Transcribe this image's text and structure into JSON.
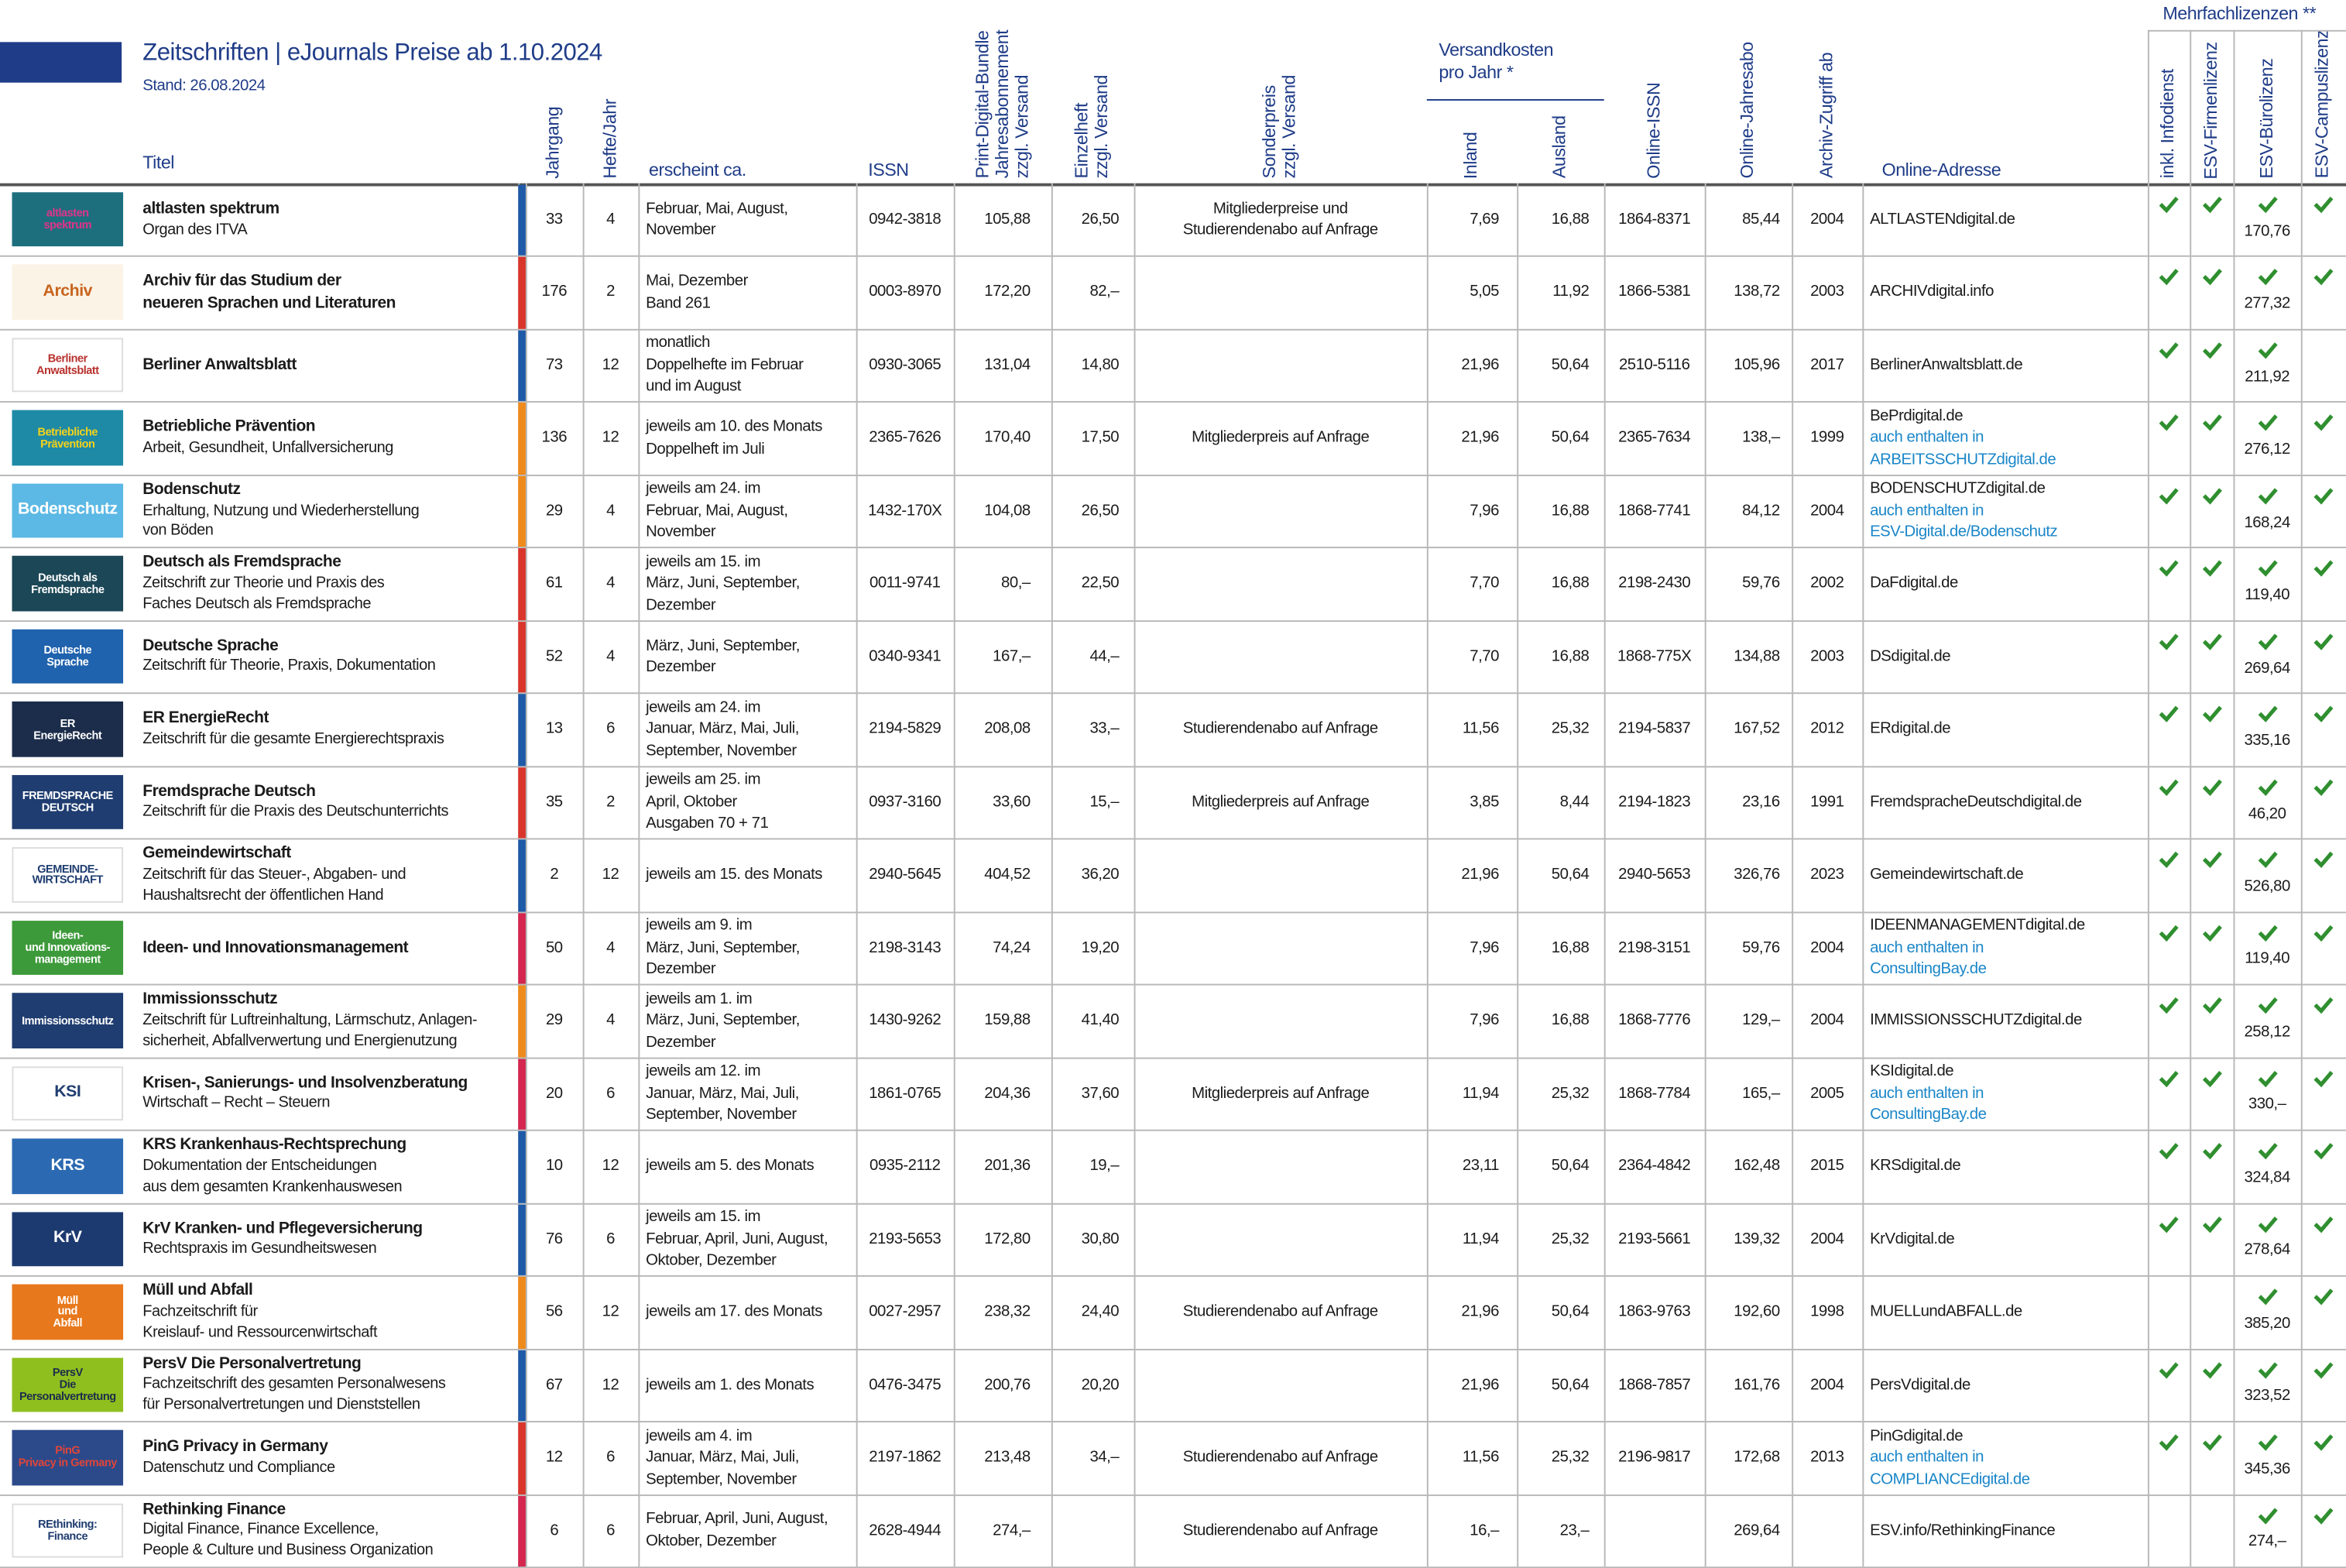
{
  "header": {
    "title": "Zeitschriften | eJournals Preise ab 1.10.2024",
    "stand": "Stand: 26.08.2024"
  },
  "columns": {
    "titel": "Titel",
    "jahrgang": "Jahrgang",
    "hefte": "Hefte/Jahr",
    "erscheint": "erscheint ca.",
    "issn": "ISSN",
    "print": "Print-Digital-Bundle\nJahresabonnement\nzzgl. Versand",
    "einzel": "Einzelheft\nzzgl. Versand",
    "sonder": "Sonderpreis\nzzgl. Versand",
    "versand": "Versandkosten\npro Jahr *",
    "inland": "Inland",
    "ausland": "Ausland",
    "oissn": "Online-ISSN",
    "oabo": "Online-Jahresabo",
    "archiv": "Archiv-Zugriff ab",
    "url": "Online-Adresse",
    "mehrfach": "Mehrfachlizenzen **",
    "infodienst": "inkl. Infodienst",
    "firmen": "ESV-Firmenlizenz",
    "buero": "ESV-Bürolizenz",
    "campus": "ESV-Campuslizenz"
  },
  "rows": [
    {
      "logo": "altlasten\nspektrum",
      "logo_bg": "#1d6f7e",
      "logo_fg": "#e0338a",
      "bar": "#1f5aa8",
      "title": "altlasten spektrum",
      "subtitle": "Organ des ITVA",
      "jahrgang": "33",
      "hefte": "4",
      "erscheint": "Februar, Mai, August,\nNovember",
      "issn": "0942-3818",
      "print": "105,88",
      "einzel": "26,50",
      "sonder": "Mitgliederpreise und\nStudierendenabo auf Anfrage",
      "inland": "7,69",
      "ausland": "16,88",
      "oissn": "1864-8371",
      "oabo": "85,44",
      "archiv": "2004",
      "url": "ALTLASTENdigital.de",
      "infodienst": true,
      "firmen": true,
      "buero": "170,76",
      "campus": true
    },
    {
      "logo": "Archiv",
      "logo_bg": "#fbf3e6",
      "logo_fg": "#c8641e",
      "bar": "#d9352b",
      "title": "Archiv für das Studium der\nneueren Sprachen und Literaturen",
      "jahrgang": "176",
      "hefte": "2",
      "erscheint": "Mai, Dezember\nBand 261",
      "issn": "0003-8970",
      "print": "172,20",
      "einzel": "82,–",
      "inland": "5,05",
      "ausland": "11,92",
      "oissn": "1866-5381",
      "oabo": "138,72",
      "archiv": "2003",
      "url": "ARCHIVdigital.info",
      "infodienst": true,
      "firmen": true,
      "buero": "277,32",
      "campus": true
    },
    {
      "logo": "Berliner\nAnwaltsblatt",
      "logo_bg": "#ffffff",
      "logo_fg": "#b8322e",
      "bar": "#1f5aa8",
      "title": "Berliner Anwaltsblatt",
      "jahrgang": "73",
      "hefte": "12",
      "erscheint": "monatlich\nDoppelhefte im Februar\nund im August",
      "issn": "0930-3065",
      "print": "131,04",
      "einzel": "14,80",
      "inland": "21,96",
      "ausland": "50,64",
      "oissn": "2510-5116",
      "oabo": "105,96",
      "archiv": "2017",
      "url": "BerlinerAnwaltsblatt.de",
      "infodienst": true,
      "firmen": true,
      "buero": "211,92",
      "campus": false
    },
    {
      "logo": "Betriebliche\nPrävention",
      "logo_bg": "#1e8aa6",
      "logo_fg": "#f3d21b",
      "bar": "#ef8a1c",
      "title": "Betriebliche Prävention",
      "subtitle": "Arbeit, Gesundheit, Unfallversicherung",
      "jahrgang": "136",
      "hefte": "12",
      "erscheint": "jeweils am 10. des Monats\nDoppelheft im Juli",
      "issn": "2365-7626",
      "print": "170,40",
      "einzel": "17,50",
      "sonder": "Mitgliederpreis auf Anfrage",
      "inland": "21,96",
      "ausland": "50,64",
      "oissn": "2365-7634",
      "oabo": "138,–",
      "archiv": "1999",
      "url": "BePrdigital.de",
      "url_note": "auch enthalten in\nARBEITSSCHUTZdigital.de",
      "infodienst": true,
      "firmen": true,
      "buero": "276,12",
      "campus": true
    },
    {
      "logo": "Bodenschutz",
      "logo_bg": "#5cb8e4",
      "logo_fg": "#ffffff",
      "bar": "#ef8a1c",
      "title": "Bodenschutz",
      "subtitle": "Erhaltung, Nutzung und Wiederherstellung\nvon Böden",
      "jahrgang": "29",
      "hefte": "4",
      "erscheint": "jeweils am 24. im\nFebruar, Mai, August,\nNovember",
      "issn": "1432-170X",
      "print": "104,08",
      "einzel": "26,50",
      "inland": "7,96",
      "ausland": "16,88",
      "oissn": "1868-7741",
      "oabo": "84,12",
      "archiv": "2004",
      "url": "BODENSCHUTZdigital.de",
      "url_note": "auch enthalten in\nESV-Digital.de/Bodenschutz",
      "infodienst": true,
      "firmen": true,
      "buero": "168,24",
      "campus": true
    },
    {
      "logo": "Deutsch als\nFremdsprache",
      "logo_bg": "#1b4756",
      "logo_fg": "#ffffff",
      "bar": "#d9352b",
      "title": "Deutsch als Fremdsprache",
      "subtitle": "Zeitschrift zur Theorie und Praxis des\nFaches Deutsch als Fremdsprache",
      "jahrgang": "61",
      "hefte": "4",
      "erscheint": "jeweils am 15. im\nMärz, Juni, September,\nDezember",
      "issn": "0011-9741",
      "print": "80,–",
      "einzel": "22,50",
      "inland": "7,70",
      "ausland": "16,88",
      "oissn": "2198-2430",
      "oabo": "59,76",
      "archiv": "2002",
      "url": "DaFdigital.de",
      "infodienst": true,
      "firmen": true,
      "buero": "119,40",
      "campus": true
    },
    {
      "logo": "Deutsche\nSprache",
      "logo_bg": "#1f62ad",
      "logo_fg": "#ffffff",
      "bar": "#d9352b",
      "title": "Deutsche Sprache",
      "subtitle": "Zeitschrift für Theorie, Praxis, Dokumentation",
      "jahrgang": "52",
      "hefte": "4",
      "erscheint": "März, Juni, September,\nDezember",
      "issn": "0340-9341",
      "print": "167,–",
      "einzel": "44,–",
      "inland": "7,70",
      "ausland": "16,88",
      "oissn": "1868-775X",
      "oabo": "134,88",
      "archiv": "2003",
      "url": "DSdigital.de",
      "infodienst": true,
      "firmen": true,
      "buero": "269,64",
      "campus": true
    },
    {
      "logo": "ER\nEnergieRecht",
      "logo_bg": "#1c2d4b",
      "logo_fg": "#ffffff",
      "bar": "#1f5aa8",
      "title": "ER EnergieRecht",
      "subtitle": "Zeitschrift für die gesamte Energierechtspraxis",
      "jahrgang": "13",
      "hefte": "6",
      "erscheint": "jeweils am 24. im\nJanuar, März, Mai, Juli,\nSeptember, November",
      "issn": "2194-5829",
      "print": "208,08",
      "einzel": "33,–",
      "sonder": "Studierendenabo auf Anfrage",
      "inland": "11,56",
      "ausland": "25,32",
      "oissn": "2194-5837",
      "oabo": "167,52",
      "archiv": "2012",
      "url": "ERdigital.de",
      "infodienst": true,
      "firmen": true,
      "buero": "335,16",
      "campus": true
    },
    {
      "logo": "FREMDSPRACHE\nDEUTSCH",
      "logo_bg": "#1f3d70",
      "logo_fg": "#ffffff",
      "bar": "#d9352b",
      "title": "Fremdsprache Deutsch",
      "subtitle": "Zeitschrift für die Praxis des Deutschunterrichts",
      "jahrgang": "35",
      "hefte": "2",
      "erscheint": "jeweils am 25. im\nApril, Oktober\nAusgaben 70 + 71",
      "issn": "0937-3160",
      "print": "33,60",
      "einzel": "15,–",
      "sonder": "Mitgliederpreis auf Anfrage",
      "inland": "3,85",
      "ausland": "8,44",
      "oissn": "2194-1823",
      "oabo": "23,16",
      "archiv": "1991",
      "url": "FremdspracheDeutschdigital.de",
      "infodienst": true,
      "firmen": true,
      "buero": "46,20",
      "campus": true
    },
    {
      "logo": "GEMEINDE-\nWIRTSCHAFT",
      "logo_bg": "#ffffff",
      "logo_fg": "#1f3d70",
      "bar": "#1f5aa8",
      "title": "Gemeindewirtschaft",
      "subtitle": "Zeitschrift für das Steuer-, Abgaben- und\nHaushaltsrecht der öffentlichen Hand",
      "jahrgang": "2",
      "hefte": "12",
      "erscheint": "jeweils am 15. des Monats",
      "issn": "2940-5645",
      "print": "404,52",
      "einzel": "36,20",
      "inland": "21,96",
      "ausland": "50,64",
      "oissn": "2940-5653",
      "oabo": "326,76",
      "archiv": "2023",
      "url": "Gemeindewirtschaft.de",
      "infodienst": true,
      "firmen": true,
      "buero": "526,80",
      "campus": true
    },
    {
      "logo": "Ideen-\nund Innovations-\nmanagement",
      "logo_bg": "#3d9a3a",
      "logo_fg": "#ffffff",
      "bar": "#d4264f",
      "title": "Ideen- und Innovationsmanagement",
      "jahrgang": "50",
      "hefte": "4",
      "erscheint": "jeweils am 9. im\nMärz, Juni, September,\nDezember",
      "issn": "2198-3143",
      "print": "74,24",
      "einzel": "19,20",
      "inland": "7,96",
      "ausland": "16,88",
      "oissn": "2198-3151",
      "oabo": "59,76",
      "archiv": "2004",
      "url": "IDEENMANAGEMENTdigital.de",
      "url_note": "auch enthalten in\nConsultingBay.de",
      "infodienst": true,
      "firmen": true,
      "buero": "119,40",
      "campus": true
    },
    {
      "logo": "Immissionsschutz",
      "logo_bg": "#1f3d70",
      "logo_fg": "#ffffff",
      "bar": "#ef8a1c",
      "title": "Immissionsschutz",
      "subtitle": "Zeitschrift für Luftreinhaltung, Lärmschutz, Anlagen-\nsicherheit, Abfallverwertung und Energienutzung",
      "jahrgang": "29",
      "hefte": "4",
      "erscheint": "jeweils am 1. im\nMärz, Juni, September,\nDezember",
      "issn": "1430-9262",
      "print": "159,88",
      "einzel": "41,40",
      "inland": "7,96",
      "ausland": "16,88",
      "oissn": "1868-7776",
      "oabo": "129,–",
      "archiv": "2004",
      "url": "IMMISSIONSSCHUTZdigital.de",
      "infodienst": true,
      "firmen": true,
      "buero": "258,12",
      "campus": true
    },
    {
      "logo": "KSI",
      "logo_bg": "#ffffff",
      "logo_fg": "#1f3d70",
      "bar": "#d4264f",
      "title": "Krisen-, Sanierungs- und Insolvenzberatung",
      "subtitle": "Wirtschaft – Recht – Steuern",
      "jahrgang": "20",
      "hefte": "6",
      "erscheint": "jeweils am 12. im\nJanuar, März, Mai, Juli,\nSeptember, November",
      "issn": "1861-0765",
      "print": "204,36",
      "einzel": "37,60",
      "sonder": "Mitgliederpreis auf Anfrage",
      "inland": "11,94",
      "ausland": "25,32",
      "oissn": "1868-7784",
      "oabo": "165,–",
      "archiv": "2005",
      "url": "KSIdigital.de",
      "url_note": "auch enthalten in\nConsultingBay.de",
      "infodienst": true,
      "firmen": true,
      "buero": "330,–",
      "campus": true
    },
    {
      "logo": "KRS",
      "logo_bg": "#2b6ab2",
      "logo_fg": "#ffffff",
      "bar": "#1f5aa8",
      "title": "KRS Krankenhaus-Rechtsprechung",
      "subtitle": "Dokumentation der Entscheidungen\naus dem gesamten Krankenhauswesen",
      "jahrgang": "10",
      "hefte": "12",
      "erscheint": "jeweils am 5. des Monats",
      "issn": "0935-2112",
      "print": "201,36",
      "einzel": "19,–",
      "inland": "23,11",
      "ausland": "50,64",
      "oissn": "2364-4842",
      "oabo": "162,48",
      "archiv": "2015",
      "url": "KRSdigital.de",
      "infodienst": true,
      "firmen": true,
      "buero": "324,84",
      "campus": true
    },
    {
      "logo": "KrV",
      "logo_bg": "#1c3a70",
      "logo_fg": "#ffffff",
      "bar": "#1f5aa8",
      "title": "KrV Kranken- und Pflegeversicherung",
      "subtitle": "Rechtspraxis im Gesundheitswesen",
      "jahrgang": "76",
      "hefte": "6",
      "erscheint": "jeweils am 15. im\nFebruar, April, Juni, August,\nOktober, Dezember",
      "issn": "2193-5653",
      "print": "172,80",
      "einzel": "30,80",
      "inland": "11,94",
      "ausland": "25,32",
      "oissn": "2193-5661",
      "oabo": "139,32",
      "archiv": "2004",
      "url": "KrVdigital.de",
      "infodienst": true,
      "firmen": true,
      "buero": "278,64",
      "campus": true
    },
    {
      "logo": "Müll\nund\nAbfall",
      "logo_bg": "#e8781c",
      "logo_fg": "#ffffff",
      "bar": "#ef8a1c",
      "title": "Müll und Abfall",
      "subtitle": "Fachzeitschrift für\nKreislauf- und Ressourcenwirtschaft",
      "jahrgang": "56",
      "hefte": "12",
      "erscheint": "jeweils am 17. des Monats",
      "issn": "0027-2957",
      "print": "238,32",
      "einzel": "24,40",
      "sonder": "Studierendenabo auf Anfrage",
      "inland": "21,96",
      "ausland": "50,64",
      "oissn": "1863-9763",
      "oabo": "192,60",
      "archiv": "1998",
      "url": "MUELLundABFALL.de",
      "infodienst": false,
      "firmen": false,
      "buero": "385,20",
      "campus": true
    },
    {
      "logo": "PersV\nDie Personalvertretung",
      "logo_bg": "#8fbf1f",
      "logo_fg": "#1c2d4b",
      "bar": "#1f5aa8",
      "title": "PersV Die Personalvertretung",
      "subtitle": "Fachzeitschrift des gesamten Personalwesens\nfür Personalvertretungen und Dienststellen",
      "jahrgang": "67",
      "hefte": "12",
      "erscheint": "jeweils am 1. des Monats",
      "issn": "0476-3475",
      "print": "200,76",
      "einzel": "20,20",
      "inland": "21,96",
      "ausland": "50,64",
      "oissn": "1868-7857",
      "oabo": "161,76",
      "archiv": "2004",
      "url": "PersVdigital.de",
      "infodienst": true,
      "firmen": true,
      "buero": "323,52",
      "campus": true
    },
    {
      "logo": "PinG\nPrivacy in Germany",
      "logo_bg": "#2c4a8a",
      "logo_fg": "#e0453a",
      "bar": "#d9352b",
      "title": "PinG Privacy in Germany",
      "subtitle": "Datenschutz und Compliance",
      "jahrgang": "12",
      "hefte": "6",
      "erscheint": "jeweils am 4. im\nJanuar, März, Mai, Juli,\nSeptember, November",
      "issn": "2197-1862",
      "print": "213,48",
      "einzel": "34,–",
      "sonder": "Studierendenabo auf Anfrage",
      "inland": "11,56",
      "ausland": "25,32",
      "oissn": "2196-9817",
      "oabo": "172,68",
      "archiv": "2013",
      "url": "PinGdigital.de",
      "url_note": "auch enthalten in\nCOMPLIANCEdigital.de",
      "infodienst": true,
      "firmen": true,
      "buero": "345,36",
      "campus": true
    },
    {
      "logo": "REthinking:\nFinance",
      "logo_bg": "#ffffff",
      "logo_fg": "#1f3d70",
      "bar": "#d4264f",
      "title": "Rethinking Finance",
      "subtitle": "Digital Finance, Finance Excellence,\nPeople & Culture und Business Organization",
      "jahrgang": "6",
      "hefte": "6",
      "erscheint": "Februar, April, Juni, August,\nOktober, Dezember",
      "issn": "2628-4944",
      "print": "274,–",
      "sonder": "Studierendenabo auf Anfrage",
      "inland": "16,–",
      "ausland": "23,–",
      "oabo": "269,64",
      "url": "ESV.info/RethinkingFinance",
      "infodienst": false,
      "firmen": false,
      "buero": "274,–",
      "campus": true
    }
  ]
}
